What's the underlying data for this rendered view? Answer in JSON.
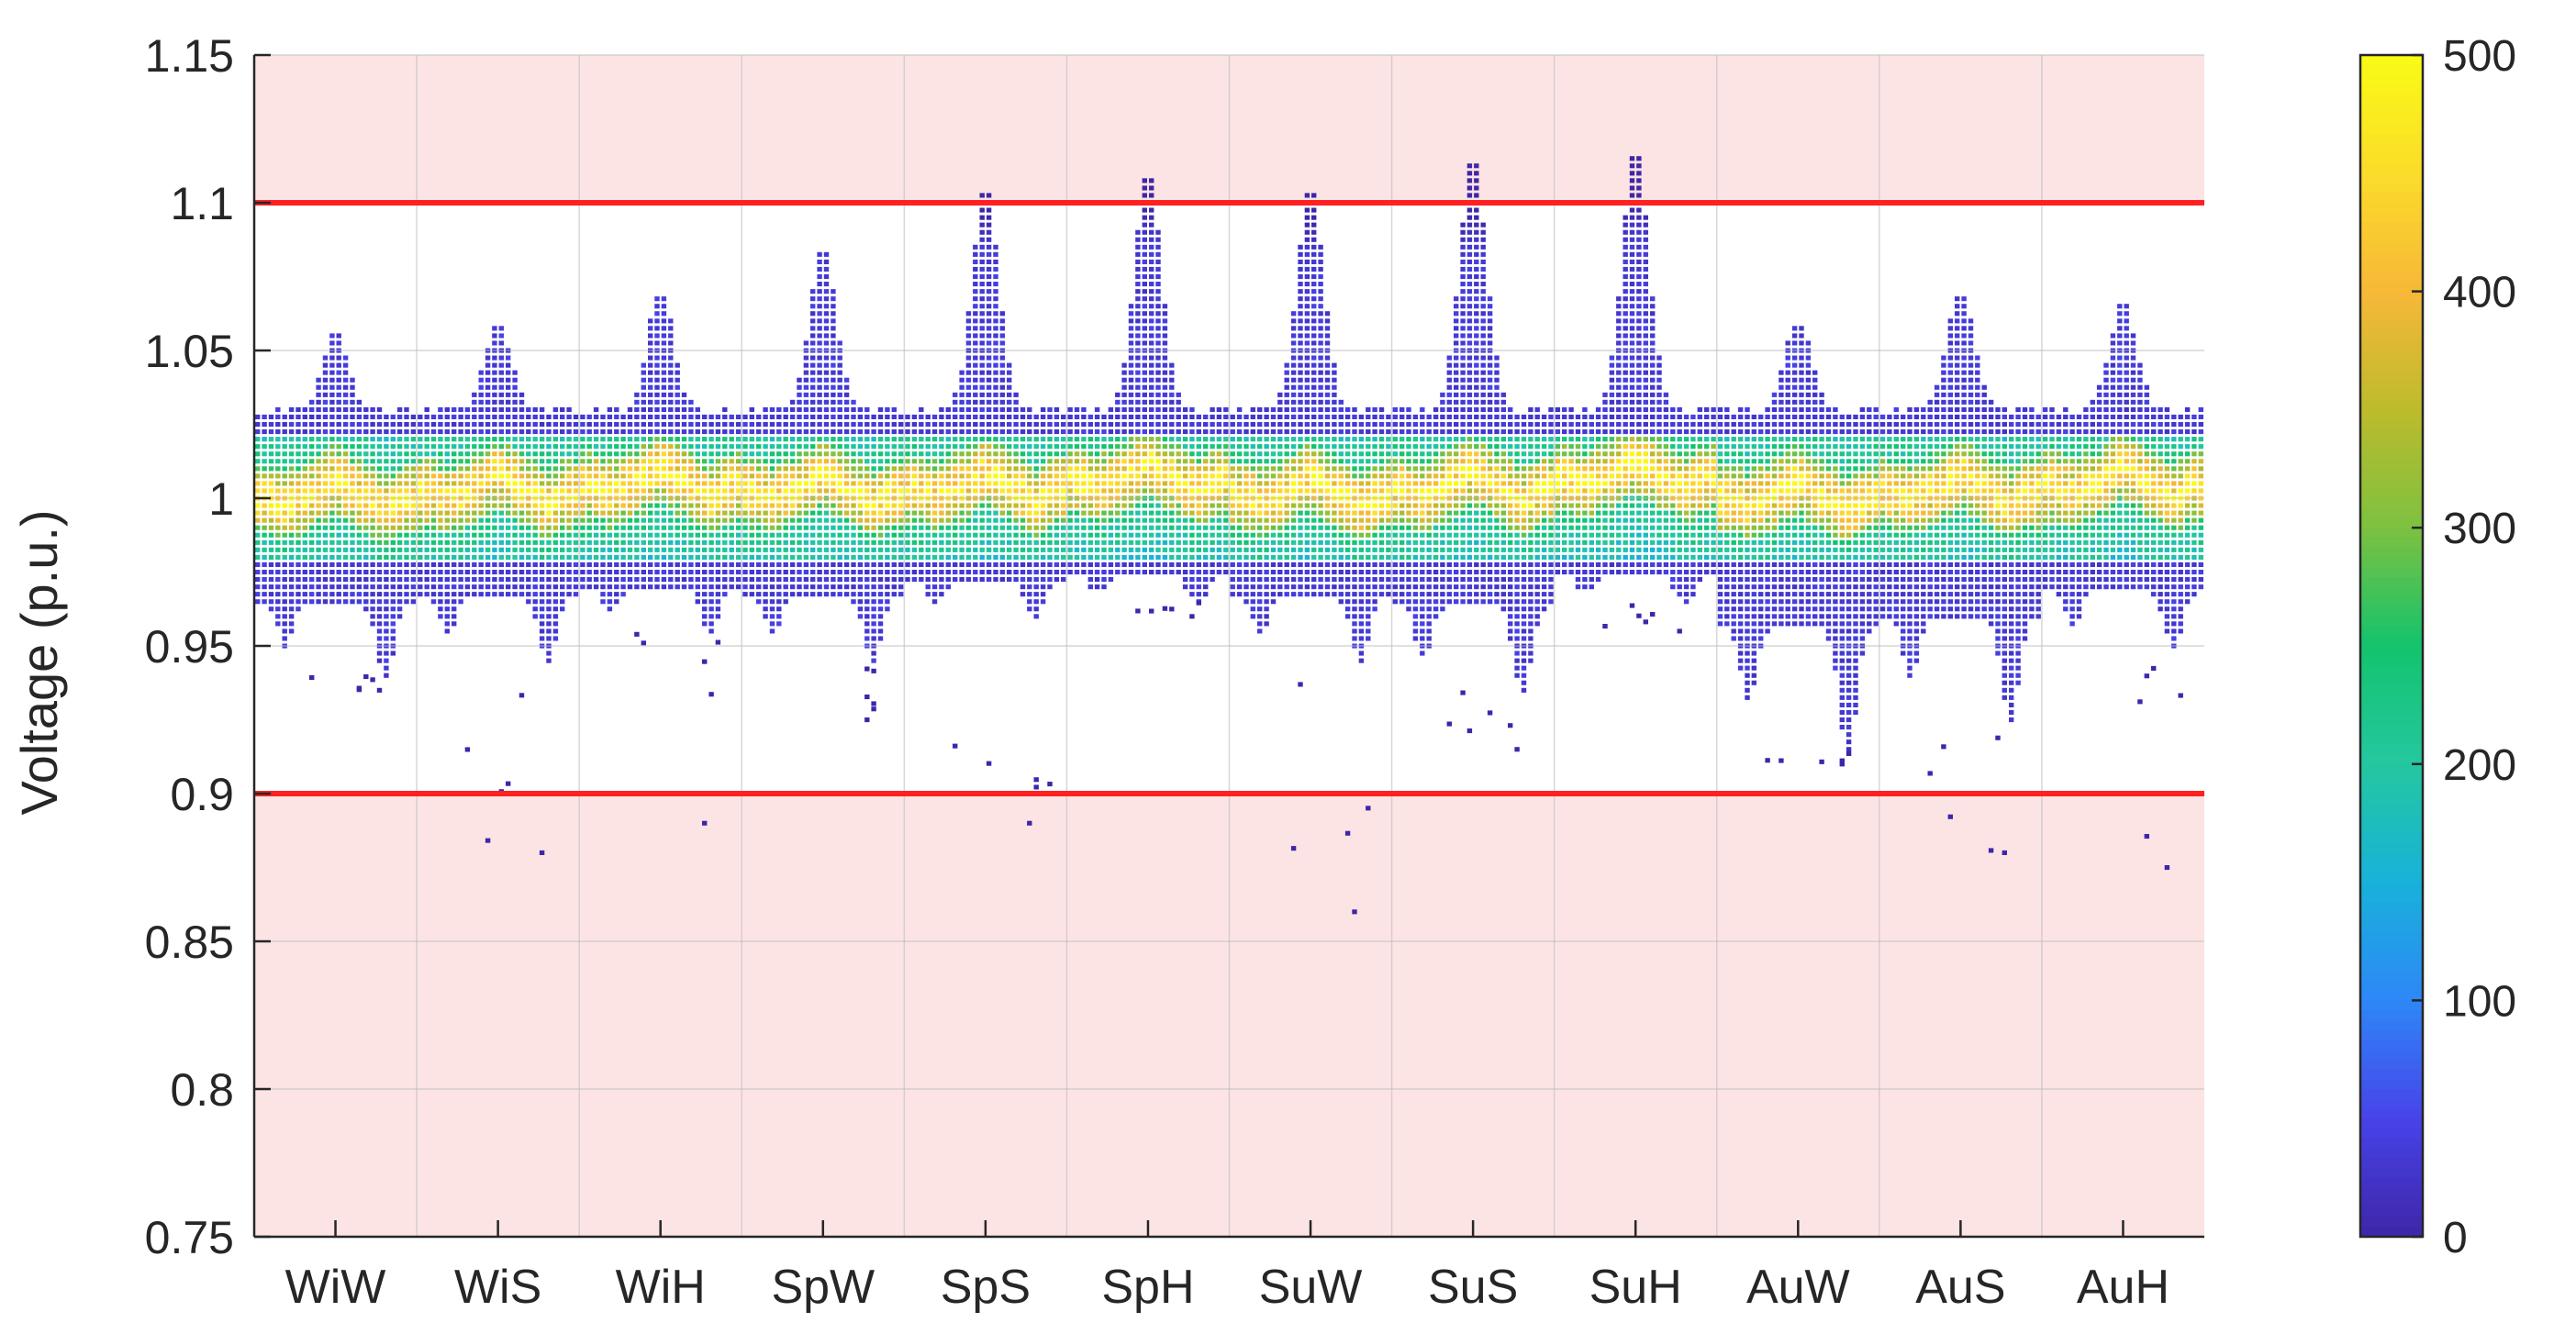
{
  "chart_data": {
    "type": "heatmap",
    "title": "",
    "xlabel": "",
    "ylabel": "Voltage (p.u.)",
    "categories": [
      "WiW",
      "WiS",
      "WiH",
      "SpW",
      "SpS",
      "SpH",
      "SuW",
      "SuS",
      "SuH",
      "AuW",
      "AuS",
      "AuH"
    ],
    "ylim": [
      0.75,
      1.15
    ],
    "yticks": [
      "0.75",
      "0.8",
      "0.85",
      "0.9",
      "0.95",
      "1",
      "1.05",
      "1.1",
      "1.15"
    ],
    "limits": [
      {
        "name": "upper",
        "value": 1.1
      },
      {
        "name": "lower",
        "value": 0.9
      }
    ],
    "colorbar": {
      "min": 0,
      "max": 500,
      "ticks": [
        "0",
        "100",
        "200",
        "300",
        "400",
        "500"
      ],
      "colormap": [
        "#3e26a8",
        "#4743e9",
        "#2e87f7",
        "#17b2d9",
        "#25c7a0",
        "#13c36d",
        "#7dc140",
        "#bdbb2c",
        "#f7b838",
        "#fbdc2a",
        "#f9fb15"
      ]
    },
    "columns": [
      {
        "name": "WiW",
        "peak": 1.058,
        "low": 0.94,
        "drop": 0.935,
        "center": 1.0
      },
      {
        "name": "WiS",
        "peak": 1.06,
        "low": 0.945,
        "drop": 0.88,
        "center": 1.002
      },
      {
        "name": "WiH",
        "peak": 1.072,
        "low": 0.955,
        "drop": 0.89,
        "center": 1.004
      },
      {
        "name": "SpW",
        "peak": 1.086,
        "low": 0.945,
        "drop": 0.925,
        "center": 1.002
      },
      {
        "name": "SpS",
        "peak": 1.107,
        "low": 0.96,
        "drop": 0.89,
        "center": 1.003
      },
      {
        "name": "SpH",
        "peak": 1.112,
        "low": 0.965,
        "drop": 0.96,
        "center": 1.006
      },
      {
        "name": "SuW",
        "peak": 1.107,
        "low": 0.945,
        "drop": 0.86,
        "center": 1.001
      },
      {
        "name": "SuS",
        "peak": 1.116,
        "low": 0.935,
        "drop": 0.915,
        "center": 1.003
      },
      {
        "name": "SuH",
        "peak": 1.12,
        "low": 0.965,
        "drop": 0.955,
        "center": 1.007
      },
      {
        "name": "AuW",
        "peak": 1.06,
        "low": 0.915,
        "drop": 0.91,
        "center": 1.0
      },
      {
        "name": "AuS",
        "peak": 1.072,
        "low": 0.925,
        "drop": 0.88,
        "center": 1.002
      },
      {
        "name": "AuH",
        "peak": 1.066,
        "low": 0.95,
        "drop": 0.875,
        "center": 1.004
      }
    ],
    "grid": true,
    "legend": "right"
  }
}
